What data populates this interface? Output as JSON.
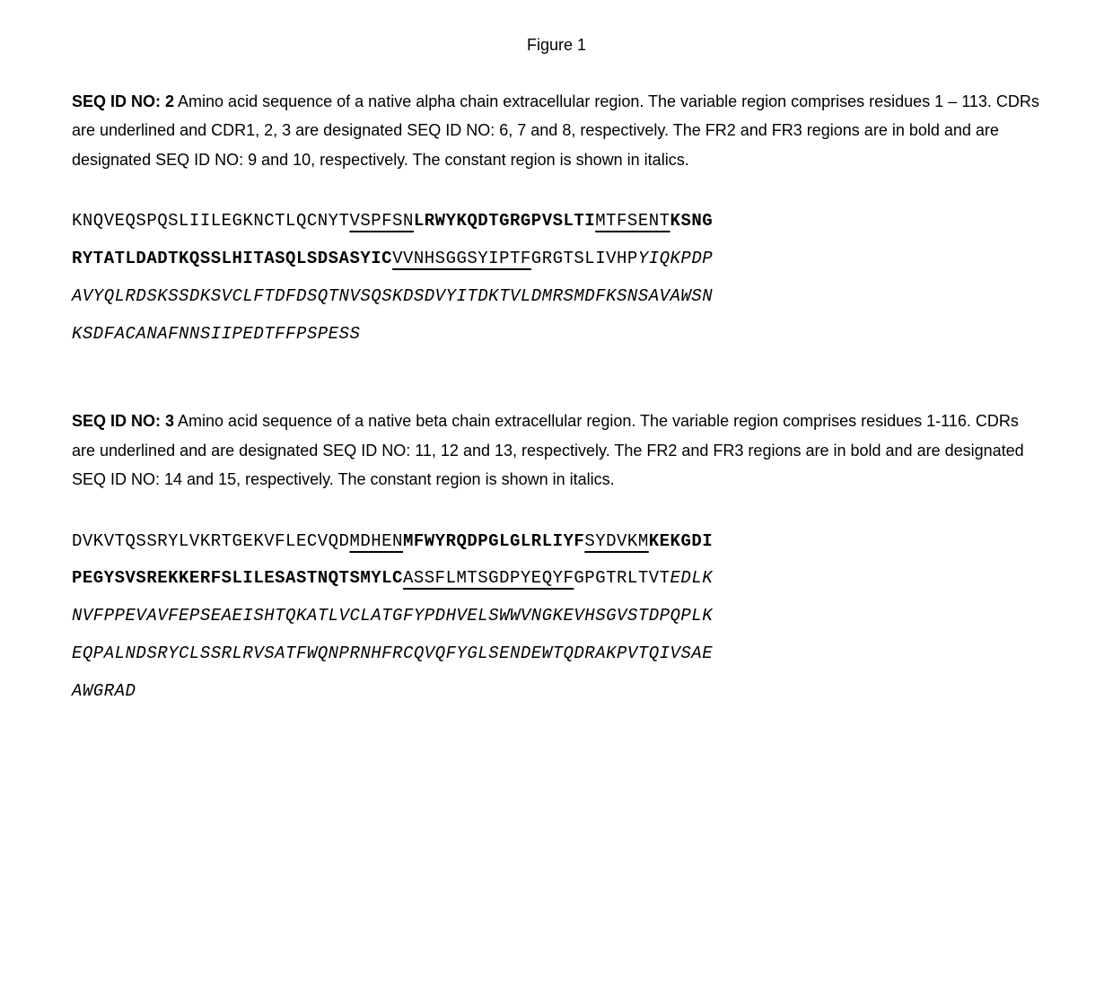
{
  "figure_title": "Figure 1",
  "seq2": {
    "label": "SEQ ID NO: 2",
    "desc": " Amino acid sequence of a native alpha chain extracellular region. The variable region comprises residues 1 – 113. CDRs are underlined and CDR1, 2, 3 are designated SEQ ID NO: 6, 7 and 8, respectively. The FR2 and FR3 regions are in bold and are designated SEQ ID NO: 9 and 10, respectively. The constant region is shown in italics.",
    "segments": [
      {
        "text": "KNQVEQSPQSLIILEGKNCTLQCNYT",
        "style": "plain"
      },
      {
        "text": "VSPFSN",
        "style": "cdr"
      },
      {
        "text": "LRWYKQDTGRGPVSLTI",
        "style": "fr"
      },
      {
        "text": "MTFSENT",
        "style": "cdr"
      },
      {
        "text": "KSNGRYT",
        "style": "fr"
      },
      {
        "text": "ATLDADTKQSSLHITASQLSDSASYIC",
        "style": "fr"
      },
      {
        "text": "VVNHSGGSYIPTF",
        "style": "cdr"
      },
      {
        "text": "GRGTSLIVHP",
        "style": "plain"
      },
      {
        "text": "YIQKPDPAVYQLR",
        "style": "const"
      },
      {
        "text": "DSKSSDKSVCLFTDFDSQTNVSQSKDSDVYITDKTVLDMRSMDFKSNSAVAWSNKSDFACA",
        "style": "const"
      },
      {
        "text": "NAFNNSIIPEDTFFPSPESS",
        "style": "const"
      }
    ]
  },
  "seq3": {
    "label": "SEQ ID NO: 3",
    "desc": " Amino acid sequence of a native beta chain extracellular region. The variable region comprises residues 1-116. CDRs are underlined and are designated SEQ ID NO: 11, 12 and 13, respectively. The FR2 and FR3 regions are in bold and are designated SEQ ID NO: 14 and 15, respectively. The constant region is shown in italics.",
    "segments": [
      {
        "text": "DVKVTQSSRYLVKRTGEKVFLECVQD",
        "style": "plain"
      },
      {
        "text": "MDHEN",
        "style": "cdr"
      },
      {
        "text": "MFWYRQDPGLGLRLIYF",
        "style": "fr"
      },
      {
        "text": "SYDVKM",
        "style": "cdr"
      },
      {
        "text": "KEKGDIP",
        "style": "fr"
      },
      {
        "text": "EGYSVSREKKERFSLILESASTNQTSMYLC",
        "style": "fr"
      },
      {
        "text": "ASSFLMTSGDPYEQYF",
        "style": "cdr"
      },
      {
        "text": "GPGTRLTVT",
        "style": "plain"
      },
      {
        "text": "EDLKNV",
        "style": "const"
      },
      {
        "text": "FPPEVAVFEPSEAEISHTQKATLVCLATGFYPDHVELSWWVNGKEVHSGVSTDPQPLKEQP",
        "style": "const"
      },
      {
        "text": "ALNDSRYCLSSRLRVSATFWQNPRNHFRCQVQFYGLSENDEWTQDRAKPVTQIVSAEAWGR",
        "style": "const"
      },
      {
        "text": "AD",
        "style": "const"
      }
    ]
  },
  "line_length": 60
}
